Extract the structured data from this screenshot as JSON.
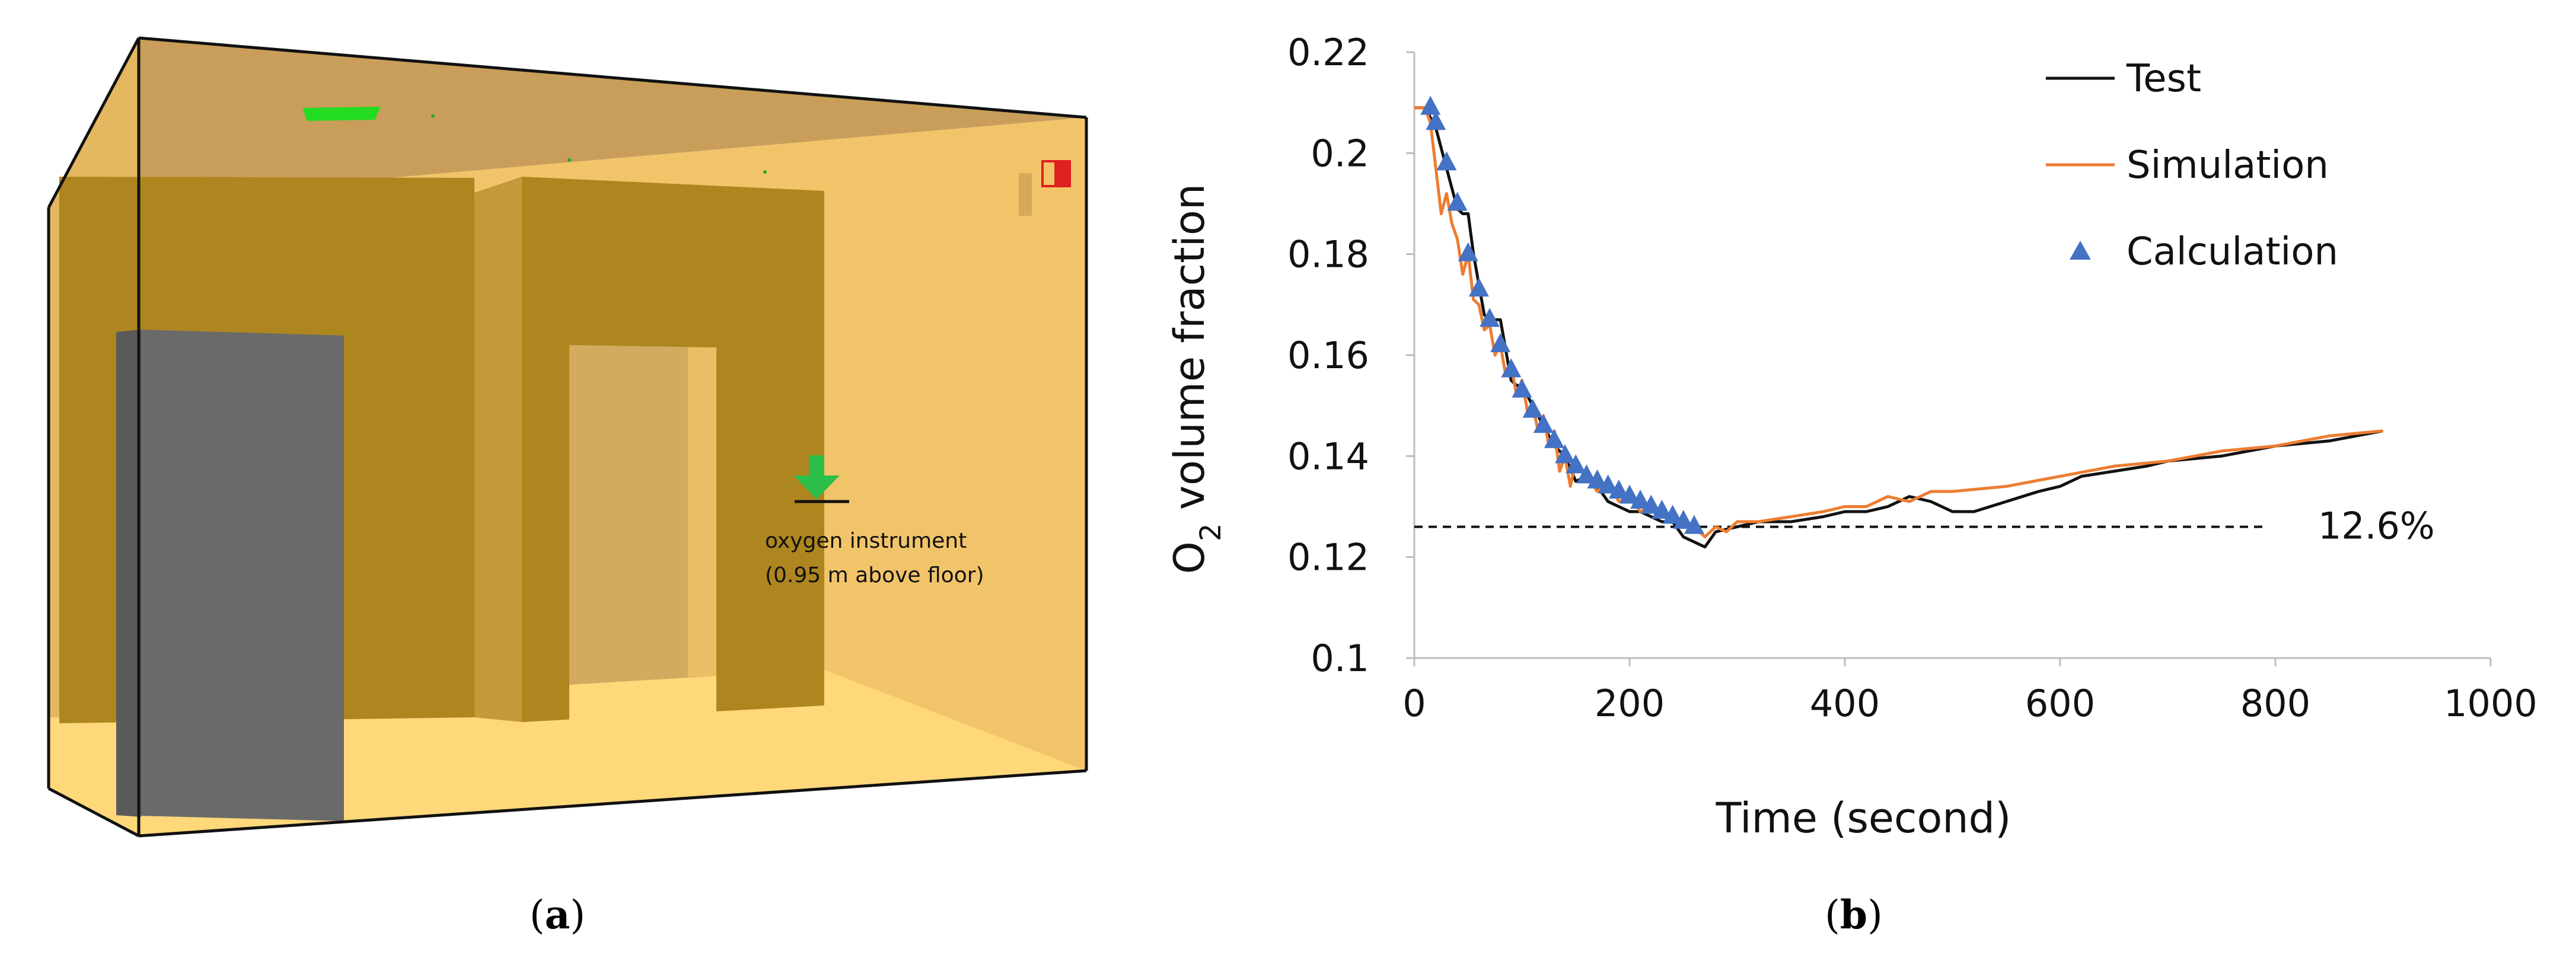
{
  "panel_a": {
    "annotation_line1": "oxygen instrument",
    "annotation_line2": "(0.95 m above floor)",
    "caption_open": "(",
    "caption_letter": "a",
    "caption_close": ")"
  },
  "panel_b": {
    "caption_open": "(",
    "caption_letter": "b",
    "caption_close": ")"
  },
  "colors": {
    "test": "#111111",
    "simulation": "#ED7D31",
    "calculation": "#4472C4",
    "room_wall": "#F2C46A",
    "room_ceiling": "#C89E5A",
    "room_floor": "#FFD87A",
    "partition": "#AE8620",
    "door": "#D2AB60",
    "block": "#6A6A6A",
    "vent_green": "#22DD22",
    "arrow_green": "#2DBE4A",
    "marker_red": "#E02020"
  },
  "chart_data": {
    "type": "line",
    "title": "",
    "xlabel": "Time (second)",
    "ylabel_main": "O",
    "ylabel_sub": "2",
    "ylabel_rest": " volume fraction",
    "xlim": [
      0,
      1000
    ],
    "ylim": [
      0.1,
      0.22
    ],
    "x_ticks": [
      0,
      200,
      400,
      600,
      800,
      1000
    ],
    "x_tick_labels": [
      "0",
      "200",
      "400",
      "600",
      "800",
      "1000"
    ],
    "y_ticks": [
      0.1,
      0.12,
      0.14,
      0.16,
      0.18,
      0.2,
      0.22
    ],
    "y_tick_labels": [
      "0.1",
      "0.12",
      "0.14",
      "0.16",
      "0.18",
      "0.2",
      "0.22"
    ],
    "legend_position": "top-right",
    "reference_line": {
      "y": 0.126,
      "x_start": 0,
      "x_end": 790,
      "style": "dashed",
      "label": "12.6%"
    },
    "series": [
      {
        "name": "Test",
        "type": "line",
        "x": [
          0,
          10,
          20,
          30,
          40,
          45,
          50,
          55,
          60,
          65,
          70,
          75,
          80,
          90,
          95,
          100,
          110,
          120,
          130,
          140,
          150,
          160,
          170,
          180,
          190,
          200,
          210,
          220,
          230,
          240,
          250,
          260,
          270,
          280,
          300,
          320,
          350,
          380,
          400,
          420,
          440,
          460,
          480,
          500,
          520,
          550,
          580,
          600,
          620,
          650,
          680,
          700,
          750,
          800,
          850,
          900
        ],
        "values": [
          0.209,
          0.209,
          0.205,
          0.197,
          0.189,
          0.188,
          0.188,
          0.18,
          0.174,
          0.168,
          0.167,
          0.167,
          0.167,
          0.155,
          0.154,
          0.154,
          0.15,
          0.146,
          0.142,
          0.14,
          0.135,
          0.136,
          0.134,
          0.131,
          0.13,
          0.129,
          0.129,
          0.128,
          0.127,
          0.127,
          0.124,
          0.123,
          0.122,
          0.125,
          0.126,
          0.127,
          0.127,
          0.128,
          0.129,
          0.129,
          0.13,
          0.132,
          0.131,
          0.129,
          0.129,
          0.131,
          0.133,
          0.134,
          0.136,
          0.137,
          0.138,
          0.139,
          0.14,
          0.142,
          0.143,
          0.145
        ]
      },
      {
        "name": "Simulation",
        "type": "line",
        "x": [
          0,
          10,
          15,
          20,
          25,
          30,
          35,
          40,
          45,
          50,
          55,
          60,
          65,
          70,
          75,
          80,
          85,
          90,
          95,
          100,
          105,
          110,
          115,
          120,
          125,
          130,
          135,
          140,
          145,
          150,
          160,
          170,
          180,
          190,
          200,
          210,
          220,
          230,
          240,
          250,
          260,
          270,
          280,
          290,
          300,
          320,
          350,
          380,
          400,
          420,
          440,
          460,
          480,
          500,
          550,
          600,
          650,
          700,
          750,
          800,
          850,
          900
        ],
        "values": [
          0.209,
          0.209,
          0.206,
          0.197,
          0.188,
          0.192,
          0.186,
          0.183,
          0.176,
          0.18,
          0.171,
          0.17,
          0.165,
          0.166,
          0.16,
          0.162,
          0.156,
          0.158,
          0.152,
          0.155,
          0.149,
          0.15,
          0.145,
          0.148,
          0.142,
          0.145,
          0.137,
          0.14,
          0.134,
          0.139,
          0.136,
          0.133,
          0.135,
          0.131,
          0.132,
          0.129,
          0.13,
          0.128,
          0.128,
          0.127,
          0.126,
          0.124,
          0.126,
          0.125,
          0.127,
          0.127,
          0.128,
          0.129,
          0.13,
          0.13,
          0.132,
          0.131,
          0.133,
          0.133,
          0.134,
          0.136,
          0.138,
          0.139,
          0.141,
          0.142,
          0.144,
          0.145
        ]
      },
      {
        "name": "Calculation",
        "type": "scatter",
        "marker": "triangle",
        "x": [
          15,
          20,
          30,
          40,
          50,
          60,
          70,
          80,
          90,
          100,
          110,
          120,
          130,
          140,
          150,
          160,
          170,
          180,
          190,
          200,
          210,
          220,
          230,
          240,
          250,
          260
        ],
        "values": [
          0.209,
          0.206,
          0.198,
          0.19,
          0.18,
          0.173,
          0.167,
          0.162,
          0.157,
          0.153,
          0.149,
          0.146,
          0.143,
          0.14,
          0.138,
          0.136,
          0.135,
          0.134,
          0.133,
          0.132,
          0.131,
          0.13,
          0.129,
          0.128,
          0.127,
          0.126
        ]
      }
    ]
  }
}
